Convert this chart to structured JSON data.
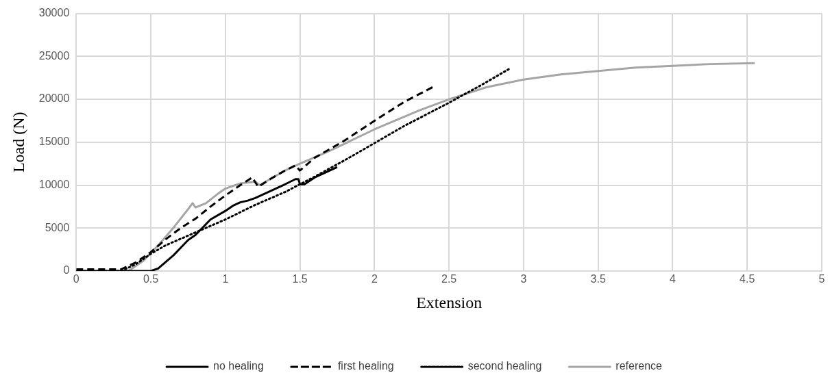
{
  "chart_data": {
    "type": "line",
    "xlabel": "Extension",
    "ylabel": "Load (N)",
    "xlim": [
      0,
      5
    ],
    "xticks": [
      0,
      0.5,
      1,
      1.5,
      2,
      2.5,
      3,
      3.5,
      4,
      4.5,
      5
    ],
    "ylim": [
      0,
      30000
    ],
    "yticks": [
      0,
      5000,
      10000,
      15000,
      20000,
      25000,
      30000
    ],
    "grid": true,
    "legend": "bottom",
    "marker": "none",
    "series": [
      {
        "name": "no healing",
        "color": "#000000",
        "line_style": "solid",
        "x": [
          0,
          0.5,
          0.55,
          0.65,
          0.75,
          0.8,
          0.9,
          1.0,
          1.05,
          1.1,
          1.15,
          1.2,
          1.3,
          1.4,
          1.47,
          1.49,
          1.5,
          1.53,
          1.6,
          1.75
        ],
        "values": [
          0,
          0,
          300,
          1800,
          3600,
          4200,
          6000,
          7000,
          7600,
          8000,
          8200,
          8500,
          9300,
          10100,
          10700,
          10700,
          10100,
          10100,
          10900,
          12100
        ]
      },
      {
        "name": "first healing",
        "color": "#000000",
        "line_style": "dashed",
        "x": [
          0,
          0.3,
          0.4,
          0.5,
          0.6,
          0.7,
          0.8,
          0.9,
          1.0,
          1.1,
          1.18,
          1.22,
          1.3,
          1.4,
          1.47,
          1.5,
          1.6,
          1.8,
          2.0,
          2.2,
          2.4
        ],
        "values": [
          200,
          200,
          1000,
          2200,
          3700,
          5000,
          6100,
          7500,
          8800,
          10000,
          10900,
          9800,
          10700,
          11700,
          12300,
          11700,
          13200,
          15200,
          17500,
          19700,
          21500
        ]
      },
      {
        "name": "second healing",
        "color": "#000000",
        "line_style": "dotted",
        "x": [
          0,
          0.3,
          0.4,
          0.5,
          0.6,
          0.8,
          1.0,
          1.2,
          1.4,
          1.6,
          1.8,
          2.0,
          2.2,
          2.5,
          2.7,
          2.9
        ],
        "values": [
          0,
          0,
          800,
          2000,
          3000,
          4500,
          6000,
          7700,
          9200,
          11000,
          12900,
          14900,
          16900,
          19600,
          21500,
          23500
        ]
      },
      {
        "name": "reference",
        "color": "#a5a5a5",
        "line_style": "solid",
        "x": [
          0,
          0.35,
          0.45,
          0.55,
          0.65,
          0.75,
          0.78,
          0.8,
          0.87,
          0.95,
          1.0,
          1.1,
          1.2,
          1.23,
          1.3,
          1.4,
          1.5,
          1.7,
          2.0,
          2.3,
          2.5,
          2.75,
          3.0,
          3.25,
          3.5,
          3.75,
          4.0,
          4.25,
          4.55
        ],
        "values": [
          0,
          0,
          1200,
          3000,
          5000,
          7200,
          7900,
          7400,
          7900,
          9000,
          9600,
          10200,
          10400,
          10000,
          10700,
          11700,
          12500,
          14000,
          16500,
          18700,
          20000,
          21400,
          22300,
          22900,
          23300,
          23700,
          23900,
          24100,
          24200
        ]
      }
    ]
  }
}
